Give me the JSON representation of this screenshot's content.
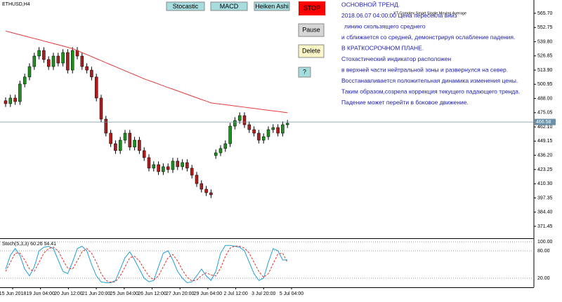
{
  "window": {
    "buttons": [
      "Stocastic",
      "MACD",
      "Heiken Ashi"
    ],
    "controls": [
      "STOP",
      "Pause",
      "Delete",
      "?"
    ],
    "analysis": [
      "ОСНОВНОЙ ТРЕНД.",
      "2018.06.07 04:00:00 Цена  пересекла  вниз",
      "линию скользящего среднего",
      "и сближается со средней, демонстрируя ослабление падения.",
      "В КРАТКОСРОЧНОМ ПЛАНЕ.",
      "Стохастический индикатор расположен",
      "в верхней части нейтральной зоны и развернулся на север.",
      "Восстанавливается положительная динамика изменения цены.",
      "Таким образом,созрела коррекция текущего падающего тренда.",
      "Падение может перейти в боковое движение."
    ],
    "xtick_labels": [
      "15 Jun 2018",
      "19 Jun 04:00",
      "20 Jun 12:00",
      "21 Jun 20:00",
      "25 Jun 04:00",
      "26 Jun 12:00",
      "27 Jun 20:00",
      "29 Jun 04:00",
      "2 Jul 12:00",
      "3 Jul 20:00",
      "5 Jul 04:00"
    ]
  },
  "chart_data": [
    {
      "type": "candlestick",
      "title": "ETHUSD,H4",
      "open": [
        486.0,
        483.3,
        488.4,
        485.2,
        501.2,
        507.6,
        517.1,
        526.7,
        531.8,
        523.5,
        517.1,
        526.7,
        520.3,
        529.9,
        513.9,
        531.8,
        526.7,
        517.1,
        513.9,
        507.6,
        488.4,
        469.2,
        456.4,
        446.8,
        440.5,
        450.0,
        456.4,
        443.7,
        450.0,
        440.5,
        434.1,
        424.5,
        427.7,
        421.3,
        425.8,
        423.2,
        430.9,
        425.8,
        429.6,
        424.5,
        418.1,
        410.4,
        405.3,
        402.1,
        436.0,
        438.5,
        442.4,
        446.8,
        462.8,
        467.9,
        472.4,
        464.1,
        459.6,
        456.4,
        450.0,
        453.2,
        459.6,
        461.5,
        456.4,
        464.1
      ],
      "high": [
        489.0,
        491.4,
        491.4,
        504.2,
        510.6,
        520.1,
        529.7,
        534.8,
        534.8,
        526.5,
        529.7,
        529.7,
        532.9,
        532.9,
        534.8,
        534.8,
        529.7,
        520.1,
        516.9,
        510.6,
        491.4,
        472.2,
        459.4,
        449.8,
        453.0,
        459.4,
        459.4,
        453.0,
        453.0,
        443.5,
        437.1,
        430.7,
        430.7,
        428.8,
        428.8,
        433.9,
        433.9,
        432.6,
        432.6,
        427.5,
        421.1,
        413.4,
        408.3,
        405.1,
        441.5,
        445.4,
        449.8,
        465.8,
        470.9,
        475.4,
        475.4,
        467.1,
        462.6,
        459.4,
        456.2,
        462.6,
        464.5,
        464.5,
        467.1,
        468.4
      ],
      "low": [
        480.3,
        480.3,
        482.2,
        482.2,
        498.2,
        504.6,
        514.1,
        523.7,
        520.5,
        514.1,
        514.1,
        517.3,
        517.3,
        510.9,
        510.9,
        523.7,
        514.1,
        510.9,
        504.6,
        485.4,
        466.2,
        453.4,
        443.8,
        437.5,
        437.5,
        447.0,
        440.7,
        440.7,
        437.5,
        431.1,
        421.5,
        421.5,
        418.3,
        418.3,
        420.2,
        420.2,
        422.8,
        422.8,
        421.5,
        415.1,
        407.4,
        402.3,
        399.1,
        397.2,
        433.0,
        435.5,
        439.4,
        443.8,
        459.8,
        464.9,
        461.1,
        456.6,
        453.4,
        447.0,
        447.0,
        450.2,
        456.6,
        453.4,
        453.4,
        461.1
      ],
      "close": [
        483.3,
        488.4,
        485.2,
        501.2,
        507.6,
        517.1,
        526.7,
        531.8,
        523.5,
        517.1,
        526.7,
        520.3,
        529.9,
        513.9,
        531.8,
        526.7,
        517.1,
        513.9,
        507.6,
        488.4,
        469.2,
        456.4,
        446.8,
        440.5,
        450.0,
        456.4,
        443.7,
        450.0,
        440.5,
        434.1,
        424.5,
        427.7,
        421.3,
        425.8,
        423.2,
        430.9,
        425.8,
        429.6,
        424.5,
        418.1,
        410.4,
        405.3,
        402.1,
        400.2,
        438.5,
        442.4,
        446.8,
        462.8,
        467.9,
        472.4,
        464.1,
        459.6,
        456.4,
        450.0,
        453.2,
        459.6,
        461.5,
        456.4,
        464.1,
        465.4
      ],
      "up_color": "#1f8f1f",
      "down_color": "#b01c1c",
      "series": [
        {
          "name": "XT Complex Smart Single Moving Average",
          "color": "#e33a3a",
          "values": [
            549.5,
            548.4,
            547.2,
            546.1,
            545.0,
            543.8,
            542.7,
            541.6,
            540.4,
            539.3,
            538.1,
            537.0,
            535.9,
            534.7,
            533.5,
            531.7,
            529.8,
            528.0,
            526.2,
            524.3,
            522.5,
            520.6,
            518.8,
            517.0,
            515.1,
            513.3,
            511.4,
            509.6,
            507.8,
            505.9,
            504.3,
            502.8,
            501.2,
            499.6,
            498.0,
            496.5,
            494.9,
            493.4,
            491.8,
            490.2,
            488.7,
            487.1,
            485.6,
            484.0,
            483.4,
            482.9,
            482.3,
            481.8,
            481.2,
            480.6,
            480.1,
            479.5,
            479.0,
            478.4,
            477.8,
            477.3,
            476.7,
            476.2,
            475.6,
            475.0
          ]
        }
      ],
      "current_price": 466.58,
      "ylim": [
        360.6,
        577.8
      ],
      "yticks": [
        {
          "value": 565.7,
          "label": "565.70"
        },
        552.75,
        {
          "value": 539.8,
          "label": "539.80"
        },
        526.85,
        {
          "value": 513.9,
          "label": "513.90"
        },
        500.95,
        {
          "value": 488,
          "label": "488.00"
        },
        475.05,
        {
          "value": 462.1,
          "label": "462.10"
        },
        449.15,
        {
          "value": 436.2,
          "label": "436.20"
        },
        423.25,
        {
          "value": 410.3,
          "label": "410.30"
        },
        397.35,
        {
          "value": 384.4,
          "label": "384.40"
        },
        371.45
      ]
    },
    {
      "type": "line",
      "title": "Stoch(5,3,3) 60.26 54.41",
      "series": [
        {
          "color": "#1e9fd6",
          "dash": false,
          "values": [
            40,
            70,
            85,
            70,
            40,
            25,
            45,
            80,
            88,
            90,
            85,
            60,
            35,
            30,
            55,
            85,
            90,
            80,
            50,
            25,
            12,
            10,
            10,
            15,
            40,
            65,
            78,
            60,
            40,
            20,
            12,
            15,
            45,
            75,
            80,
            60,
            35,
            20,
            10,
            12,
            25,
            40,
            25,
            15,
            35,
            75,
            92,
            92,
            90,
            88,
            80,
            55,
            30,
            15,
            20,
            55,
            85,
            80,
            60,
            60.26
          ]
        },
        {
          "color": "#e03030",
          "dash": true,
          "values": [
            35,
            55,
            75,
            75,
            60,
            40,
            35,
            55,
            75,
            85,
            88,
            80,
            60,
            42,
            40,
            58,
            78,
            85,
            75,
            55,
            30,
            15,
            11,
            12,
            25,
            45,
            65,
            68,
            58,
            40,
            25,
            16,
            25,
            45,
            65,
            72,
            58,
            38,
            22,
            14,
            16,
            26,
            32,
            27,
            25,
            42,
            68,
            86,
            91,
            90,
            86,
            75,
            55,
            35,
            22,
            30,
            52,
            73,
            75,
            54.41
          ]
        }
      ],
      "ylim": [
        0,
        106.2
      ],
      "yticks": [
        {
          "value": 100,
          "label": "100.00"
        },
        {
          "value": 80,
          "label": "80.00"
        },
        {
          "value": 20,
          "label": "20.00"
        }
      ]
    }
  ]
}
